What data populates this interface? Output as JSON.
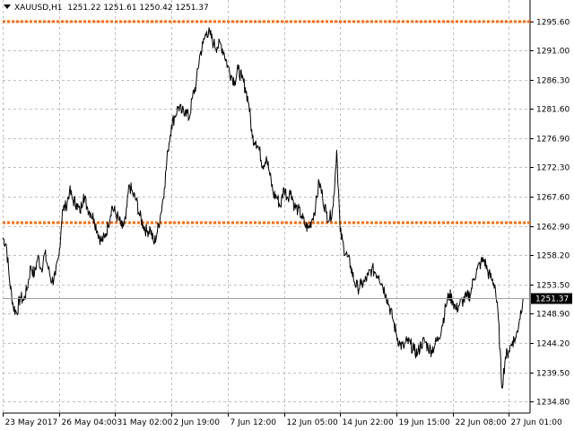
{
  "header": {
    "symbol": "XAUUSD,H1",
    "open": "1251.22",
    "high": "1251.61",
    "low": "1250.42",
    "close": "1251.37"
  },
  "colors": {
    "background": "#ffffff",
    "grid": "#c0c0c0",
    "price_line": "#000000",
    "level_line": "#ff6a00",
    "current_price_bg": "#000000",
    "current_price_text": "#ffffff"
  },
  "chart_data": {
    "type": "line",
    "ylim": [
      1233.0,
      1297.0
    ],
    "xlim": [
      0,
      150
    ],
    "y_ticks": [
      "1295.60",
      "1291.00",
      "1286.30",
      "1281.60",
      "1276.90",
      "1272.30",
      "1267.60",
      "1262.90",
      "1258.20",
      "1253.50",
      "1248.90",
      "1244.20",
      "1239.50",
      "1234.80"
    ],
    "y_tick_values": [
      1295.6,
      1291.0,
      1286.3,
      1281.6,
      1276.9,
      1272.3,
      1267.6,
      1262.9,
      1258.2,
      1253.5,
      1248.9,
      1244.2,
      1239.5,
      1234.8
    ],
    "x_ticks": [
      "23 May 2017",
      "26 May 04:00",
      "31 May 02:00",
      "2 Jun 19:00",
      "7 Jun 12:00",
      "12 Jun 05:00",
      "14 Jun 22:00",
      "19 Jun 15:00",
      "22 Jun 08:00",
      "27 Jun 01:00"
    ],
    "x_tick_positions": [
      0,
      16,
      32,
      48,
      64,
      80,
      96,
      112,
      128,
      144
    ],
    "levels": [
      1295.6,
      1263.4
    ],
    "current_price": "1251.37",
    "current_price_value": 1251.37,
    "series": [
      {
        "x": [
          0,
          1,
          2,
          3,
          4,
          5,
          6,
          7,
          8,
          9,
          10,
          11,
          12,
          13,
          14,
          15,
          16,
          17,
          18,
          19,
          20,
          21,
          22,
          23,
          24,
          25,
          26,
          27,
          28,
          29,
          30,
          31,
          32,
          33,
          34,
          35,
          36,
          37,
          38,
          39,
          40,
          41,
          42,
          43,
          44,
          45,
          46,
          47,
          48,
          49,
          50,
          51,
          52,
          53,
          54,
          55,
          56,
          57,
          58,
          59,
          60,
          61,
          62,
          63,
          64,
          65,
          66,
          67,
          68,
          69,
          70,
          71,
          72,
          73,
          74,
          75,
          76,
          77,
          78,
          79,
          80,
          81,
          82,
          83,
          84,
          85,
          86,
          87,
          88,
          89,
          90,
          91,
          92,
          93,
          94,
          95,
          96,
          97,
          98,
          99,
          100,
          101,
          102,
          103,
          104,
          105,
          106,
          107,
          108,
          109,
          110,
          111,
          112,
          113,
          114,
          115,
          116,
          117,
          118,
          119,
          120,
          121,
          122,
          123,
          124,
          125,
          126,
          127,
          128,
          129,
          130,
          131,
          132,
          133,
          134,
          135,
          136,
          137,
          138,
          139,
          140,
          141,
          142,
          143,
          144,
          145,
          146,
          147,
          148
        ],
        "values": [
          1261.0,
          1260.0,
          1254.0,
          1250.0,
          1249.0,
          1251.5,
          1251.0,
          1253.0,
          1256.5,
          1255.0,
          1258.0,
          1256.0,
          1258.5,
          1256.0,
          1254.0,
          1255.0,
          1258.0,
          1265.5,
          1266.0,
          1268.5,
          1267.0,
          1266.5,
          1265.0,
          1268.0,
          1266.0,
          1265.0,
          1264.0,
          1262.0,
          1260.5,
          1261.0,
          1263.0,
          1266.0,
          1265.0,
          1264.0,
          1262.5,
          1264.0,
          1269.5,
          1268.0,
          1267.0,
          1264.5,
          1263.0,
          1262.0,
          1262.5,
          1260.0,
          1262.0,
          1265.0,
          1269.0,
          1275.0,
          1279.0,
          1280.5,
          1282.0,
          1281.0,
          1281.5,
          1280.0,
          1283.5,
          1285.5,
          1290.0,
          1292.0,
          1294.0,
          1293.5,
          1292.0,
          1291.5,
          1292.0,
          1290.5,
          1288.5,
          1287.0,
          1286.0,
          1288.0,
          1286.5,
          1285.0,
          1282.5,
          1277.0,
          1276.5,
          1275.0,
          1272.5,
          1274.0,
          1271.0,
          1268.0,
          1267.5,
          1266.0,
          1269.0,
          1267.5,
          1268.5,
          1266.0,
          1265.5,
          1264.5,
          1263.0,
          1262.5,
          1264.0,
          1266.0,
          1270.0,
          1267.5,
          1265.0,
          1264.0,
          1266.0,
          1275.0,
          1262.0,
          1259.5,
          1258.0,
          1256.5,
          1254.0,
          1253.0,
          1253.5,
          1254.0,
          1255.0,
          1256.0,
          1255.5,
          1255.0,
          1253.5,
          1252.0,
          1250.0,
          1248.0,
          1245.5,
          1244.0,
          1243.5,
          1244.5,
          1244.0,
          1243.0,
          1242.5,
          1244.0,
          1244.5,
          1243.5,
          1243.0,
          1244.0,
          1245.0,
          1247.0,
          1250.0,
          1252.0,
          1251.0,
          1249.5,
          1250.5,
          1251.0,
          1251.5,
          1252.0,
          1254.5,
          1256.0,
          1257.0,
          1257.5,
          1255.5,
          1254.5,
          1253.5,
          1248.0,
          1237.0,
          1242.0,
          1243.0,
          1244.5,
          1245.0,
          1248.0,
          1251.4
        ]
      }
    ]
  }
}
